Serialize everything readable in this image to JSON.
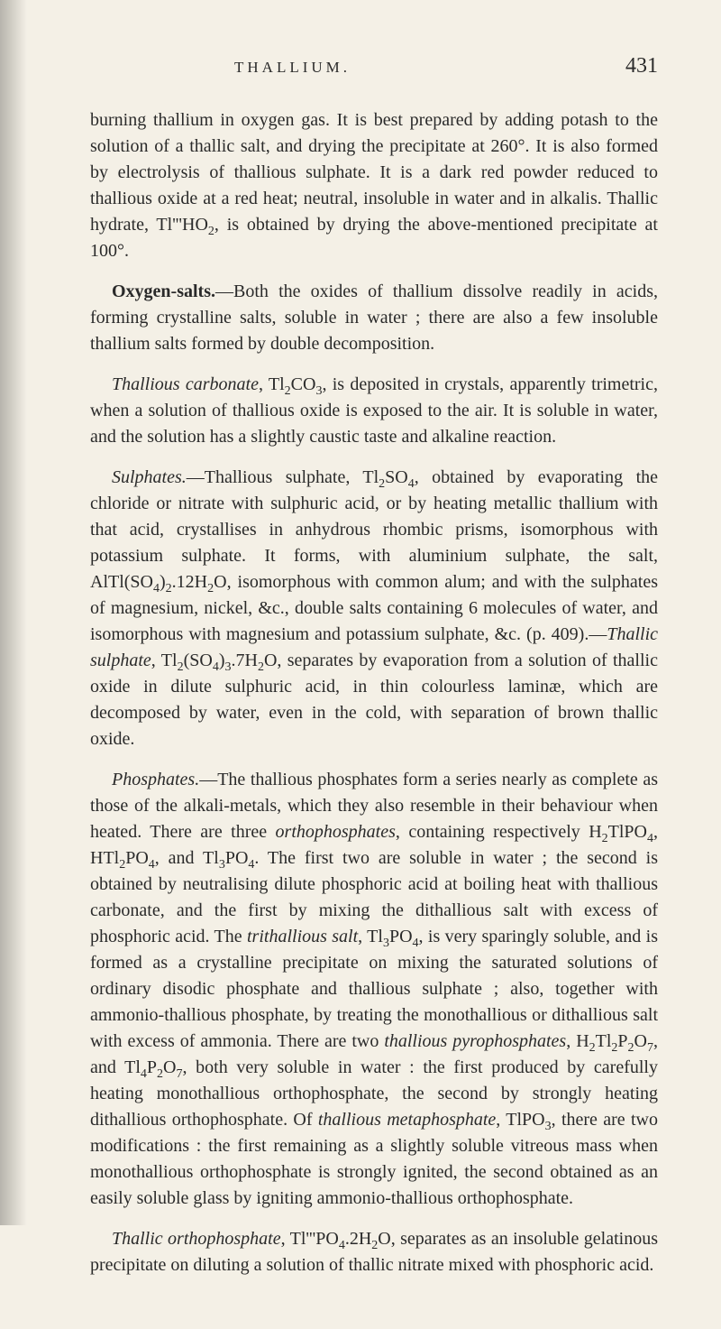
{
  "header": {
    "running_title": "THALLIUM.",
    "page_number": "431"
  },
  "paragraphs": {
    "p1_a": "burning thallium in oxygen gas. It is best prepared by adding potash to the solution of a thallic salt, and drying the precipitate at 260°. It is also formed by electrolysis of thallious sulphate. It is a dark red powder reduced to thallious oxide at a red heat; neutral, insoluble in water and in alkalis. Thallic hydrate, Tl'''HO",
    "p1_b": ", is obtained by drying the above-mentioned precipitate at 100°.",
    "p2_title": "Oxygen-salts.",
    "p2_a": "—Both the oxides of thallium dissolve readily in acids, forming crystalline salts, soluble in water ; there are also a few insoluble thallium salts formed by double decomposition.",
    "p3_em": "Thallious carbonate",
    "p3_a": ", Tl",
    "p3_b": "CO",
    "p3_c": ", is deposited in crystals, apparently trimetric, when a solution of thallious oxide is exposed to the air. It is soluble in water, and the solution has a slightly caustic taste and alkaline reaction.",
    "p4_em": "Sulphates.",
    "p4_a": "—Thallious sulphate, Tl",
    "p4_b": "SO",
    "p4_c": ", obtained by evaporating the chloride or nitrate with sulphuric acid, or by heating metallic thallium with that acid, crystallises in anhydrous rhombic prisms, isomorphous with potassium sulphate. It forms, with aluminium sulphate, the salt, AlTl(SO",
    "p4_d": ")",
    "p4_e": ".12H",
    "p4_f": "O, isomorphous with common alum; and with the sulphates of magnesium, nickel, &c., double salts containing 6 molecules of water, and isomorphous with magnesium and potassium sulphate, &c. (p. 409).—",
    "p4_em2": "Thallic sulphate",
    "p4_g": ", Tl",
    "p4_h": "(SO",
    "p4_i": ")",
    "p4_j": ".7H",
    "p4_k": "O, separates by evaporation from a solution of thallic oxide in dilute sulphuric acid, in thin colourless laminæ, which are decomposed by water, even in the cold, with separation of brown thallic oxide.",
    "p5_em": "Phosphates.",
    "p5_a": "—The thallious phosphates form a series nearly as complete as those of the alkali-metals, which they also resemble in their behaviour when heated. There are three ",
    "p5_em2": "orthophosphates",
    "p5_b": ", containing respectively H",
    "p5_c": "TlPO",
    "p5_d": ", HTl",
    "p5_e": "PO",
    "p5_f": ", and Tl",
    "p5_g": "PO",
    "p5_h": ". The first two are soluble in water ; the second is obtained by neutralising dilute phosphoric acid at boiling heat with thallious carbonate, and the first by mixing the dithallious salt with excess of phosphoric acid. The ",
    "p5_em3": "trithallious salt",
    "p5_i": ", Tl",
    "p5_j": "PO",
    "p5_k": ", is very sparingly soluble, and is formed as a crystalline precipitate on mixing the saturated solutions of ordinary disodic phosphate and thallious sulphate ; also, together with ammonio-thallious phosphate, by treating the monothallious or dithallious salt with excess of ammonia. There are two ",
    "p5_em4": "thallious pyrophosphates",
    "p5_l": ", H",
    "p5_m": "Tl",
    "p5_n": "P",
    "p5_o": "O",
    "p5_p": ", and Tl",
    "p5_q": "P",
    "p5_r": "O",
    "p5_s": ", both very soluble in water : the first produced by carefully heating monothallious orthophosphate, the second by strongly heating dithallious orthophosphate. Of ",
    "p5_em5": "thallious metaphosphate",
    "p5_t": ", TlPO",
    "p5_u": ", there are two modifications : the first remaining as a slightly soluble vitreous mass when monothallious orthophosphate is strongly ignited, the second obtained as an easily soluble glass by igniting ammonio-thallious orthophosphate.",
    "p6_em": "Thallic orthophosphate",
    "p6_a": ", Tl'''PO",
    "p6_b": ".2H",
    "p6_c": "O, separates as an insoluble gelatinous precipitate on diluting a solution of thallic nitrate mixed with phosphoric acid."
  },
  "subs": {
    "two": "2",
    "three": "3",
    "four": "4",
    "seven": "7"
  },
  "colors": {
    "background": "#f4f0e6",
    "text": "#2a2a2a"
  }
}
